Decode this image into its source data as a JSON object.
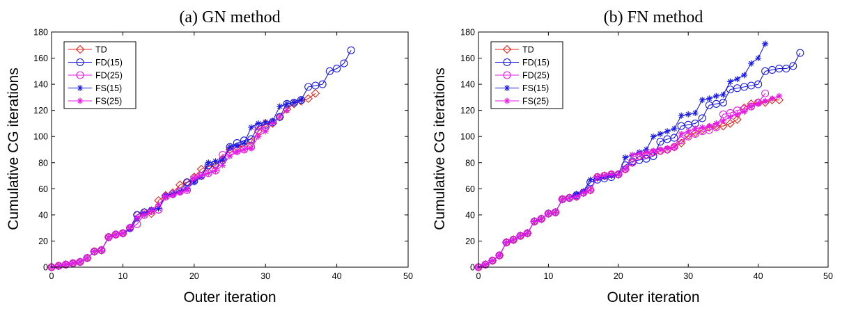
{
  "chart_data": [
    {
      "type": "line",
      "title": "(a) GN method",
      "xlabel": "Outer iteration",
      "ylabel": "Cumulative CG iterations",
      "xlim": [
        0,
        50
      ],
      "ylim": [
        0,
        180
      ],
      "xticks": [
        0,
        10,
        20,
        30,
        40,
        50
      ],
      "yticks": [
        0,
        20,
        40,
        60,
        80,
        100,
        120,
        140,
        160,
        180
      ],
      "grid": false,
      "legend_position": "top-left",
      "series": [
        {
          "name": "TD",
          "color": "#e8231a",
          "marker": "diamond",
          "values": [
            0,
            1,
            2,
            3,
            4,
            7,
            12,
            13,
            23,
            25,
            26,
            30,
            40,
            42,
            41,
            51,
            55,
            57,
            63,
            65,
            69,
            75,
            77,
            78,
            83,
            90,
            92,
            93,
            96,
            104,
            110,
            110,
            115,
            121,
            125,
            127,
            129,
            133
          ]
        },
        {
          "name": "FD(15)",
          "color": "#1a1ae6",
          "marker": "circle",
          "values": [
            0,
            1,
            2,
            3,
            4,
            7,
            12,
            13,
            23,
            25,
            26,
            30,
            40,
            42,
            43,
            44,
            54,
            56,
            58,
            65,
            66,
            70,
            78,
            79,
            82,
            92,
            95,
            97,
            98,
            108,
            109,
            111,
            115,
            125,
            126,
            128,
            138,
            139,
            140,
            150,
            152,
            156,
            166
          ]
        },
        {
          "name": "FD(25)",
          "color": "#e61ae6",
          "marker": "circle",
          "values": [
            0,
            1,
            2,
            3,
            4,
            7,
            12,
            13,
            23,
            25,
            26,
            30,
            33,
            40,
            43,
            44,
            54,
            56,
            58,
            59,
            68,
            70,
            72,
            74,
            86,
            88,
            89,
            90,
            92,
            105,
            107
          ]
        },
        {
          "name": "FS(15)",
          "color": "#1a1ae6",
          "marker": "star",
          "values": [
            0,
            1,
            2,
            3,
            4,
            7,
            12,
            13,
            23,
            25,
            26,
            29,
            37,
            41,
            44,
            45,
            55,
            56,
            58,
            60,
            65,
            69,
            80,
            81,
            82,
            92,
            93,
            95,
            107,
            110,
            111,
            112,
            123,
            125,
            126,
            128
          ]
        },
        {
          "name": "FS(25)",
          "color": "#e61ae6",
          "marker": "star",
          "values": [
            0,
            1,
            2,
            3,
            4,
            7,
            12,
            13,
            23,
            25,
            26,
            30,
            38,
            40,
            43,
            48,
            54,
            55,
            57,
            59,
            68,
            70,
            72,
            74,
            78,
            85,
            88,
            90,
            91,
            100,
            104,
            110,
            115,
            120
          ]
        }
      ]
    },
    {
      "type": "line",
      "title": "(b) FN method",
      "xlabel": "Outer iteration",
      "ylabel": "Cumulative CG iterations",
      "xlim": [
        0,
        50
      ],
      "ylim": [
        0,
        180
      ],
      "xticks": [
        0,
        10,
        20,
        30,
        40,
        50
      ],
      "yticks": [
        0,
        20,
        40,
        60,
        80,
        100,
        120,
        140,
        160,
        180
      ],
      "grid": false,
      "legend_position": "top-left",
      "series": [
        {
          "name": "TD",
          "color": "#e8231a",
          "marker": "diamond",
          "values": [
            0,
            2,
            5,
            9,
            19,
            21,
            24,
            26,
            35,
            37,
            41,
            42,
            52,
            53,
            54,
            57,
            59,
            69,
            70,
            71,
            71,
            75,
            80,
            85,
            86,
            88,
            89,
            90,
            92,
            95,
            101,
            103,
            105,
            107,
            108,
            108,
            110,
            113,
            122,
            125,
            126,
            126,
            128,
            128
          ]
        },
        {
          "name": "FD(15)",
          "color": "#1a1ae6",
          "marker": "circle",
          "values": [
            0,
            2,
            5,
            9,
            19,
            21,
            24,
            26,
            35,
            37,
            41,
            42,
            52,
            53,
            55,
            57,
            65,
            67,
            68,
            69,
            71,
            78,
            81,
            82,
            83,
            85,
            96,
            98,
            99,
            108,
            109,
            110,
            114,
            124,
            125,
            126,
            136,
            137,
            138,
            139,
            140,
            150,
            151,
            152,
            152,
            154,
            164
          ]
        },
        {
          "name": "FD(25)",
          "color": "#e61ae6",
          "marker": "circle",
          "values": [
            0,
            2,
            5,
            9,
            19,
            21,
            24,
            26,
            35,
            37,
            41,
            42,
            52,
            53,
            54,
            57,
            59,
            69,
            70,
            71,
            71,
            75,
            80,
            85,
            86,
            88,
            89,
            90,
            92,
            97,
            100,
            102,
            104,
            105,
            107,
            117,
            118,
            120,
            121,
            123,
            126,
            133
          ]
        },
        {
          "name": "FS(15)",
          "color": "#1a1ae6",
          "marker": "star",
          "values": [
            0,
            2,
            5,
            9,
            19,
            21,
            24,
            26,
            35,
            37,
            41,
            42,
            52,
            53,
            56,
            58,
            67,
            68,
            69,
            70,
            71,
            84,
            86,
            88,
            90,
            100,
            102,
            104,
            106,
            116,
            117,
            118,
            128,
            129,
            131,
            132,
            142,
            144,
            147,
            156,
            160,
            171
          ]
        },
        {
          "name": "FS(25)",
          "color": "#e61ae6",
          "marker": "star",
          "values": [
            0,
            2,
            5,
            9,
            19,
            21,
            24,
            26,
            35,
            37,
            41,
            42,
            52,
            53,
            54,
            57,
            59,
            69,
            70,
            71,
            71,
            75,
            86,
            87,
            88,
            89,
            90,
            91,
            92,
            102,
            104,
            106,
            107,
            108,
            110,
            112,
            115,
            117,
            119,
            123,
            125,
            127,
            129,
            131
          ]
        }
      ]
    }
  ]
}
